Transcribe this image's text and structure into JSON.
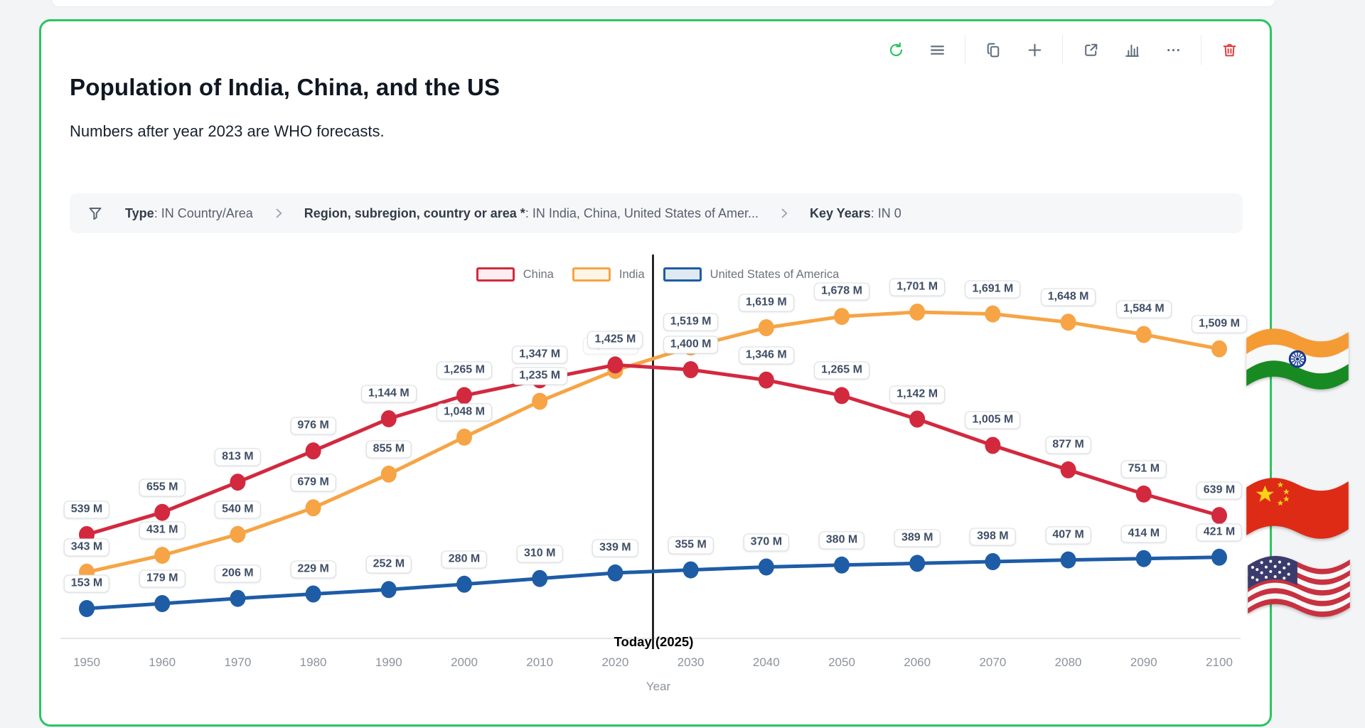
{
  "header": {
    "title": "Population of India, China, and the US",
    "subtitle": "Numbers after year 2023 are WHO forecasts."
  },
  "toolbar": {
    "groups": [
      [
        "refresh",
        "menu"
      ],
      [
        "copy",
        "add"
      ],
      [
        "expand",
        "bar-chart",
        "more"
      ],
      [
        "delete"
      ]
    ],
    "icon_color": "#5f6b7a",
    "refresh_color": "#22c35e",
    "delete_color": "#e23b3b"
  },
  "filter_bar": {
    "value_prefix": ": ",
    "segments": [
      {
        "label": "Type",
        "value": "IN Country/Area"
      },
      {
        "label": "Region, subregion, country or area *",
        "value": "IN India, China, United States of Amer..."
      },
      {
        "label": "Key Years",
        "value": "IN 0"
      }
    ]
  },
  "chart_data": {
    "type": "line",
    "x": [
      1950,
      1960,
      1970,
      1980,
      1990,
      2000,
      2010,
      2020,
      2030,
      2040,
      2050,
      2060,
      2070,
      2080,
      2090,
      2100
    ],
    "xlabel": "Year",
    "unit": "M",
    "ylim": [
      0,
      1800
    ],
    "grid": false,
    "legend_position": "top",
    "annotation": {
      "label": "Today (2025)",
      "year": 2025
    },
    "series": [
      {
        "name": "China",
        "color": "#d2293f",
        "legend_fill": "#fceef0",
        "values": [
          539,
          655,
          813,
          976,
          1144,
          1265,
          1347,
          1425,
          1400,
          1346,
          1265,
          1142,
          1005,
          877,
          751,
          639
        ]
      },
      {
        "name": "India",
        "color": "#f6a445",
        "legend_fill": "#fdf5e5",
        "ghost_label_year": 2020,
        "values": [
          343,
          431,
          540,
          679,
          855,
          1048,
          1235,
          1396,
          1519,
          1619,
          1678,
          1701,
          1691,
          1648,
          1584,
          1509
        ]
      },
      {
        "name": "United States of America",
        "color": "#1e5ca6",
        "legend_fill": "#dfe9f2",
        "values": [
          153,
          179,
          206,
          229,
          252,
          280,
          310,
          339,
          355,
          370,
          380,
          389,
          398,
          407,
          414,
          421
        ]
      }
    ]
  },
  "flags": [
    {
      "country": "India"
    },
    {
      "country": "China"
    },
    {
      "country": "United States"
    }
  ]
}
